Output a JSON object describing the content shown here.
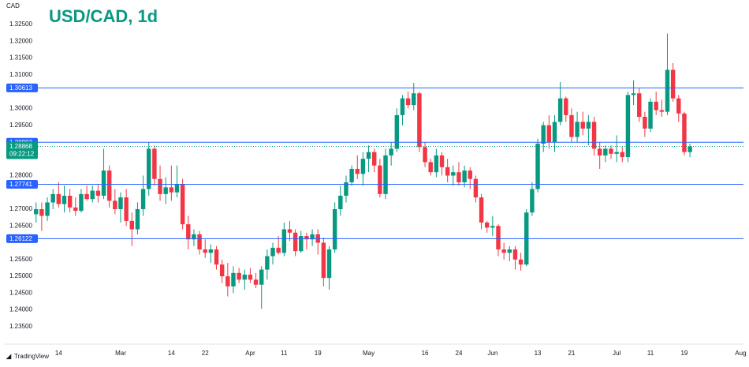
{
  "chart_data": {
    "type": "candlestick",
    "title": "USD/CAD, 1d",
    "currency": "CAD",
    "branding": "TradingView",
    "up_color": "#089981",
    "down_color": "#f23645",
    "level_color": "#2962ff",
    "ylim": [
      1.2298,
      1.3323
    ],
    "xlim": [
      -5.7,
      125.5
    ],
    "yticks": [
      {
        "value": 1.325,
        "label": "1.32500"
      },
      {
        "value": 1.32,
        "label": "1.32000"
      },
      {
        "value": 1.315,
        "label": "1.31500"
      },
      {
        "value": 1.31,
        "label": "1.31000"
      },
      {
        "value": 1.3,
        "label": "1.30000"
      },
      {
        "value": 1.295,
        "label": "1.29500"
      },
      {
        "value": 1.28,
        "label": "1.28000"
      },
      {
        "value": 1.27,
        "label": "1.27000"
      },
      {
        "value": 1.265,
        "label": "1.26500"
      },
      {
        "value": 1.255,
        "label": "1.25500"
      },
      {
        "value": 1.25,
        "label": "1.25000"
      },
      {
        "value": 1.245,
        "label": "1.24500"
      },
      {
        "value": 1.24,
        "label": "1.24000"
      },
      {
        "value": 1.235,
        "label": "1.23500"
      }
    ],
    "xticks": [
      {
        "value": 4,
        "label": "14"
      },
      {
        "value": 15,
        "label": "Mar"
      },
      {
        "value": 24,
        "label": "14"
      },
      {
        "value": 30,
        "label": "22"
      },
      {
        "value": 38,
        "label": "Apr"
      },
      {
        "value": 44,
        "label": "11"
      },
      {
        "value": 50,
        "label": "19"
      },
      {
        "value": 59,
        "label": "May"
      },
      {
        "value": 69,
        "label": "16"
      },
      {
        "value": 75,
        "label": "24"
      },
      {
        "value": 81,
        "label": "Jun"
      },
      {
        "value": 89,
        "label": "13"
      },
      {
        "value": 95,
        "label": "21"
      },
      {
        "value": 103,
        "label": "Jul"
      },
      {
        "value": 109,
        "label": "11"
      },
      {
        "value": 115,
        "label": "19"
      },
      {
        "value": 125,
        "label": "Aug"
      }
    ],
    "levels": [
      1.30613,
      1.28993,
      1.27741,
      1.26122
    ],
    "last_price": {
      "value": 1.28868,
      "countdown": "09:22:12"
    },
    "open": [
      1.2685,
      1.27,
      1.268,
      1.272,
      1.2745,
      1.2715,
      1.274,
      1.2705,
      1.2695,
      1.2745,
      1.273,
      1.2755,
      1.274,
      1.2815,
      1.2725,
      1.27,
      1.2735,
      1.2665,
      1.264,
      1.27,
      1.276,
      1.288,
      1.279,
      1.2745,
      1.2765,
      1.275,
      1.2775,
      1.2655,
      1.261,
      1.2625,
      1.258,
      1.257,
      1.258,
      1.2535,
      1.25,
      1.247,
      1.251,
      1.249,
      1.2505,
      1.249,
      1.2475,
      1.252,
      1.256,
      1.2585,
      1.257,
      1.264,
      1.263,
      1.2575,
      1.262,
      1.261,
      1.2625,
      1.26,
      1.2495,
      1.258,
      1.27,
      1.274,
      1.278,
      1.282,
      1.2805,
      1.285,
      1.287,
      1.283,
      1.2745,
      1.286,
      1.288,
      1.298,
      1.303,
      1.301,
      1.3045,
      1.2885,
      1.284,
      1.281,
      1.286,
      1.2825,
      1.28,
      1.281,
      1.278,
      1.2815,
      1.279,
      1.2735,
      1.266,
      1.2645,
      1.265,
      1.258,
      1.257,
      1.258,
      1.255,
      1.2535,
      1.269,
      1.276,
      1.2895,
      1.295,
      1.29,
      1.296,
      1.303,
      1.298,
      1.2915,
      1.296,
      1.294,
      1.296,
      1.288,
      1.286,
      1.288,
      1.2865,
      1.287,
      1.2855,
      1.304,
      1.3045,
      1.2975,
      1.294,
      1.302,
      1.2995,
      1.299,
      1.3115,
      1.303,
      1.2985,
      1.287
    ],
    "high": [
      1.272,
      1.272,
      1.2735,
      1.276,
      1.278,
      1.277,
      1.276,
      1.2735,
      1.276,
      1.277,
      1.277,
      1.2775,
      1.288,
      1.283,
      1.276,
      1.275,
      1.276,
      1.269,
      1.272,
      1.28,
      1.29,
      1.289,
      1.283,
      1.2795,
      1.283,
      1.283,
      1.279,
      1.268,
      1.264,
      1.2635,
      1.261,
      1.2595,
      1.259,
      1.255,
      1.254,
      1.253,
      1.2525,
      1.252,
      1.2525,
      1.251,
      1.253,
      1.258,
      1.26,
      1.262,
      1.266,
      1.2665,
      1.264,
      1.2635,
      1.263,
      1.264,
      1.264,
      1.2615,
      1.259,
      1.272,
      1.277,
      1.28,
      1.283,
      1.286,
      1.287,
      1.289,
      1.288,
      1.285,
      1.288,
      1.29,
      1.3,
      1.304,
      1.305,
      1.3076,
      1.305,
      1.29,
      1.285,
      1.288,
      1.287,
      1.285,
      1.283,
      1.284,
      1.283,
      1.2825,
      1.28,
      1.2745,
      1.2665,
      1.268,
      1.2655,
      1.26,
      1.259,
      1.259,
      1.257,
      1.27,
      1.278,
      1.291,
      1.296,
      1.298,
      1.298,
      1.3079,
      1.3035,
      1.3,
      1.299,
      1.299,
      1.298,
      1.2975,
      1.29,
      1.289,
      1.289,
      1.292,
      1.2885,
      1.305,
      1.3084,
      1.306,
      1.299,
      1.303,
      1.305,
      1.3025,
      1.3223,
      1.3135,
      1.304,
      1.299,
      1.2895
    ],
    "low": [
      1.266,
      1.2635,
      1.2665,
      1.27,
      1.2705,
      1.269,
      1.269,
      1.268,
      1.269,
      1.2725,
      1.272,
      1.272,
      1.273,
      1.2705,
      1.2685,
      1.266,
      1.265,
      1.259,
      1.2625,
      1.268,
      1.274,
      1.277,
      1.2725,
      1.2715,
      1.2725,
      1.2735,
      1.264,
      1.258,
      1.259,
      1.2565,
      1.2555,
      1.254,
      1.252,
      1.248,
      1.244,
      1.245,
      1.248,
      1.246,
      1.248,
      1.2465,
      1.2403,
      1.249,
      1.2535,
      1.2565,
      1.256,
      1.2605,
      1.256,
      1.257,
      1.258,
      1.259,
      1.2565,
      1.247,
      1.246,
      1.257,
      1.268,
      1.272,
      1.277,
      1.279,
      1.277,
      1.281,
      1.281,
      1.2735,
      1.273,
      1.283,
      1.287,
      1.295,
      1.3,
      1.2995,
      1.287,
      1.2825,
      1.28,
      1.2795,
      1.28,
      1.278,
      1.277,
      1.277,
      1.2765,
      1.276,
      1.272,
      1.264,
      1.263,
      1.262,
      1.256,
      1.255,
      1.2545,
      1.252,
      1.2517,
      1.253,
      1.268,
      1.275,
      1.287,
      1.288,
      1.287,
      1.295,
      1.296,
      1.29,
      1.29,
      1.292,
      1.289,
      1.286,
      1.282,
      1.284,
      1.285,
      1.284,
      1.284,
      1.284,
      1.301,
      1.296,
      1.2915,
      1.293,
      1.298,
      1.2975,
      1.298,
      1.302,
      1.296,
      1.286,
      1.2855
    ],
    "close": [
      1.27,
      1.268,
      1.272,
      1.2745,
      1.2715,
      1.274,
      1.2705,
      1.2695,
      1.2745,
      1.273,
      1.2755,
      1.274,
      1.2815,
      1.2725,
      1.27,
      1.2735,
      1.2665,
      1.264,
      1.27,
      1.276,
      1.288,
      1.279,
      1.2745,
      1.2765,
      1.275,
      1.2775,
      1.2655,
      1.261,
      1.2625,
      1.258,
      1.257,
      1.258,
      1.2535,
      1.25,
      1.247,
      1.251,
      1.249,
      1.2505,
      1.249,
      1.2475,
      1.252,
      1.256,
      1.2585,
      1.257,
      1.264,
      1.263,
      1.2575,
      1.262,
      1.261,
      1.2625,
      1.26,
      1.2495,
      1.258,
      1.27,
      1.274,
      1.278,
      1.282,
      1.2805,
      1.285,
      1.287,
      1.283,
      1.2745,
      1.286,
      1.288,
      1.298,
      1.303,
      1.301,
      1.3045,
      1.2885,
      1.284,
      1.281,
      1.286,
      1.2825,
      1.28,
      1.281,
      1.278,
      1.2815,
      1.279,
      1.2735,
      1.266,
      1.2645,
      1.265,
      1.258,
      1.257,
      1.258,
      1.255,
      1.2535,
      1.269,
      1.276,
      1.2895,
      1.295,
      1.29,
      1.296,
      1.303,
      1.298,
      1.2915,
      1.296,
      1.294,
      1.296,
      1.288,
      1.286,
      1.288,
      1.2865,
      1.287,
      1.2855,
      1.304,
      1.3045,
      1.2975,
      1.294,
      1.302,
      1.2995,
      1.299,
      1.3115,
      1.303,
      1.2985,
      1.287,
      1.28868
    ]
  }
}
